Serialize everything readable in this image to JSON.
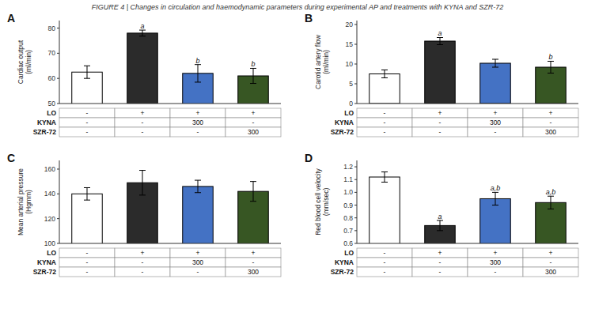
{
  "title": "FIGURE 4 | Changes in circulation and haemodynamic parameters during experimental AP and treatments with KYNA and SZR-72",
  "chart_data": [
    {
      "type": "bar",
      "title": "A",
      "y_label": "Cardiac output\n(ml/min)",
      "categories": [
        null,
        null,
        null,
        null
      ],
      "values": [
        62.5,
        78.0,
        62.0,
        61.0
      ],
      "errors": [
        2.5,
        1.2,
        3.5,
        3.0
      ],
      "annotations": [
        null,
        "a",
        "b",
        "b"
      ],
      "colors": [
        "white",
        "#2b2b2b",
        "#4472c4",
        "#375623"
      ],
      "ylim": [
        50,
        83
      ],
      "yticks": [
        50,
        60,
        70,
        80
      ],
      "grid": false,
      "table_rows": [
        "LO",
        "KYNA",
        "SZR-72"
      ],
      "table_data": [
        [
          "-",
          "+",
          "+",
          "+"
        ],
        [
          "-",
          "-",
          "300",
          "-"
        ],
        [
          "-",
          "-",
          "-",
          "300"
        ]
      ]
    },
    {
      "type": "bar",
      "title": "B",
      "y_label": "Carotid artery flow\n(ml/min)",
      "categories": [
        null,
        null,
        null,
        null
      ],
      "values": [
        7.5,
        15.8,
        10.2,
        9.2
      ],
      "errors": [
        1.0,
        0.9,
        1.0,
        1.5
      ],
      "annotations": [
        null,
        "a",
        null,
        "b"
      ],
      "colors": [
        "white",
        "#2b2b2b",
        "#4472c4",
        "#375623"
      ],
      "ylim": [
        0,
        21
      ],
      "yticks": [
        0,
        5,
        10,
        15,
        20
      ],
      "grid": false,
      "table_rows": [
        "LO",
        "KYNA",
        "SZR-72"
      ],
      "table_data": [
        [
          "-",
          "+",
          "+",
          "+"
        ],
        [
          "-",
          "-",
          "300",
          "-"
        ],
        [
          "-",
          "-",
          "-",
          "300"
        ]
      ]
    },
    {
      "type": "bar",
      "title": "C",
      "y_label": "Mean arterial pressure\n(Hgmm)",
      "categories": [
        null,
        null,
        null,
        null
      ],
      "values": [
        140,
        149,
        146,
        142
      ],
      "errors": [
        5.0,
        10.0,
        5.0,
        8.0
      ],
      "annotations": [
        null,
        null,
        null,
        null
      ],
      "colors": [
        "white",
        "#2b2b2b",
        "#4472c4",
        "#375623"
      ],
      "ylim": [
        100,
        167
      ],
      "yticks": [
        100,
        120,
        140,
        160
      ],
      "grid": false,
      "table_rows": [
        "LO",
        "KYNA",
        "SZR-72"
      ],
      "table_data": [
        [
          "-",
          "+",
          "+",
          "+"
        ],
        [
          "-",
          "-",
          "300",
          "-"
        ],
        [
          "-",
          "-",
          "-",
          "300"
        ]
      ]
    },
    {
      "type": "bar",
      "title": "D",
      "y_label": "Red blood cell velocity\n(mm/sec)",
      "categories": [
        null,
        null,
        null,
        null
      ],
      "values": [
        1.12,
        0.74,
        0.95,
        0.92
      ],
      "errors": [
        0.04,
        0.04,
        0.05,
        0.05
      ],
      "annotations": [
        null,
        "a",
        "a,b",
        "a,b"
      ],
      "colors": [
        "white",
        "#2b2b2b",
        "#4472c4",
        "#375623"
      ],
      "ylim": [
        0.6,
        1.25
      ],
      "yticks": [
        0.6,
        0.7,
        0.8,
        0.9,
        {
          "value": 1,
          "label": "1.0"
        },
        1.1,
        1.2
      ],
      "grid": false,
      "table_rows": [
        "LO",
        "KYNA",
        "SZR-72"
      ],
      "table_data": [
        [
          "-",
          "+",
          "+",
          "+"
        ],
        [
          "-",
          "-",
          "300",
          "-"
        ],
        [
          "-",
          "-",
          "-",
          "300"
        ]
      ]
    }
  ]
}
